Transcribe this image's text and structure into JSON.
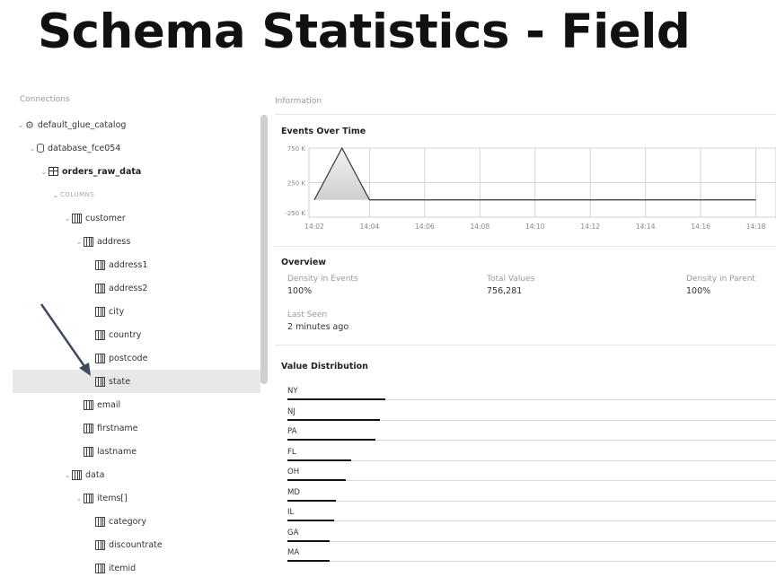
{
  "slide": {
    "title": "Schema Statistics - Field"
  },
  "left_panel": {
    "header": "Connections",
    "tree": [
      {
        "label": "default_glue_catalog",
        "indent": 0,
        "caret": "⌄",
        "icon": "catalog-icon",
        "bold": false
      },
      {
        "label": "database_fce054",
        "indent": 1,
        "caret": "⌄",
        "icon": "database-icon",
        "bold": false
      },
      {
        "label": "orders_raw_data",
        "indent": 2,
        "caret": "⌄",
        "icon": "table-icon",
        "bold": true
      },
      {
        "label": "COLUMNS",
        "indent": 3,
        "caret": "⌄",
        "icon": "",
        "bold": false,
        "section": true
      },
      {
        "label": "customer",
        "indent": 4,
        "caret": "⌄",
        "icon": "column-icon",
        "bold": false
      },
      {
        "label": "address",
        "indent": 5,
        "caret": "⌄",
        "icon": "column-icon",
        "bold": false
      },
      {
        "label": "address1",
        "indent": 6,
        "caret": "",
        "icon": "column-icon",
        "bold": false
      },
      {
        "label": "address2",
        "indent": 6,
        "caret": "",
        "icon": "column-icon",
        "bold": false
      },
      {
        "label": "city",
        "indent": 6,
        "caret": "",
        "icon": "column-icon",
        "bold": false
      },
      {
        "label": "country",
        "indent": 6,
        "caret": "",
        "icon": "column-icon",
        "bold": false
      },
      {
        "label": "postcode",
        "indent": 6,
        "caret": "",
        "icon": "column-icon",
        "bold": false
      },
      {
        "label": "state",
        "indent": 6,
        "caret": "",
        "icon": "column-icon",
        "bold": false,
        "selected": true
      },
      {
        "label": "email",
        "indent": 5,
        "caret": "",
        "icon": "column-icon",
        "bold": false
      },
      {
        "label": "firstname",
        "indent": 5,
        "caret": "",
        "icon": "column-icon",
        "bold": false
      },
      {
        "label": "lastname",
        "indent": 5,
        "caret": "",
        "icon": "column-icon",
        "bold": false
      },
      {
        "label": "data",
        "indent": 4,
        "caret": "⌄",
        "icon": "column-icon",
        "bold": false
      },
      {
        "label": "items[]",
        "indent": 5,
        "caret": "⌄",
        "icon": "column-icon",
        "bold": false
      },
      {
        "label": "category",
        "indent": 6,
        "caret": "",
        "icon": "column-icon",
        "bold": false
      },
      {
        "label": "discountrate",
        "indent": 6,
        "caret": "",
        "icon": "column-icon",
        "bold": false
      },
      {
        "label": "itemid",
        "indent": 6,
        "caret": "",
        "icon": "column-icon",
        "bold": false
      }
    ]
  },
  "info": {
    "header": "Information",
    "events_title": "Events Over Time",
    "overview_title": "Overview",
    "overview": {
      "density_events_label": "Density in Events",
      "density_events_value": "100%",
      "total_values_label": "Total Values",
      "total_values_value": "756,281",
      "density_parent_label": "Density in Parent",
      "density_parent_value": "100%",
      "last_seen_label": "Last Seen",
      "last_seen_value": "2 minutes ago"
    },
    "value_dist_title": "Value Distribution"
  },
  "chart_data": [
    {
      "type": "area",
      "title": "Events Over Time",
      "x": [
        "14:02",
        "14:03",
        "14:04",
        "14:06",
        "14:08",
        "14:10",
        "14:12",
        "14:14",
        "14:16",
        "14:18"
      ],
      "x_tick_labels": [
        "14:02",
        "14:04",
        "14:06",
        "14:08",
        "14:10",
        "14:12",
        "14:14",
        "14:16",
        "14:18"
      ],
      "y_tick_labels": [
        "750 K",
        "250 K",
        "-250 K"
      ],
      "series": [
        {
          "values": [
            0,
            750000,
            0,
            0,
            0,
            0,
            0,
            0,
            0,
            0
          ]
        }
      ],
      "ylim": [
        -250000,
        750000
      ],
      "grid": true
    },
    {
      "type": "bar",
      "title": "Value Distribution",
      "categories": [
        "NY",
        "NJ",
        "PA",
        "FL",
        "OH",
        "MD",
        "IL",
        "GA",
        "MA"
      ],
      "values": [
        0.2,
        0.19,
        0.18,
        0.13,
        0.12,
        0.1,
        0.095,
        0.087,
        0.087
      ]
    }
  ],
  "colors": {
    "selected_row": "#e8e8e8",
    "bar": "#111111",
    "arrow": "#3d4a60"
  }
}
